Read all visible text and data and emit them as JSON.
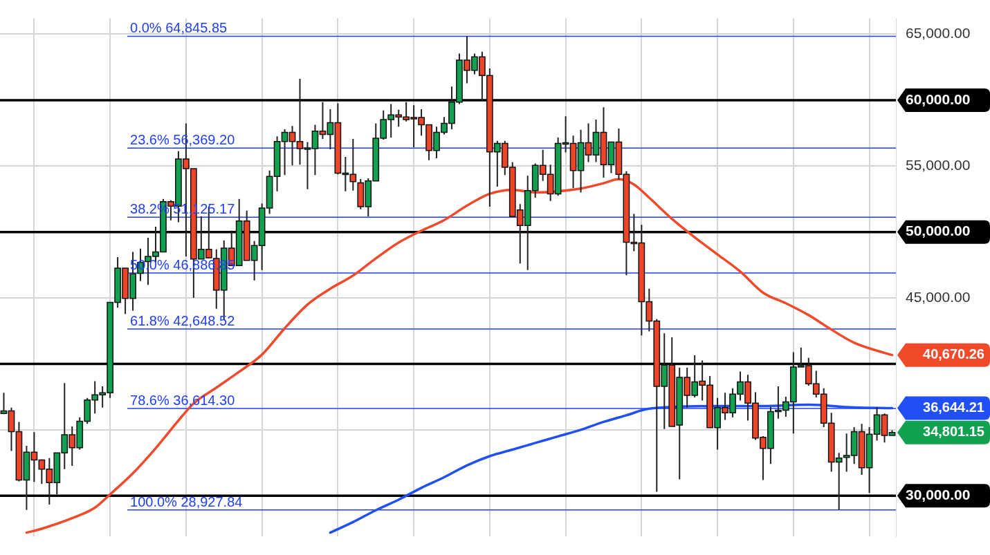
{
  "chart_data": {
    "type": "candlestick",
    "categories": [
      null,
      null,
      null,
      null,
      null,
      null,
      null,
      null,
      null,
      null,
      null,
      null,
      null,
      null,
      null,
      null,
      null,
      null,
      null,
      null,
      null,
      null,
      null,
      null,
      null,
      null,
      null,
      null,
      null,
      null,
      null,
      null,
      null,
      null,
      null,
      null,
      null,
      null,
      null,
      null,
      null,
      null,
      null,
      null,
      null,
      null,
      null,
      null,
      null,
      null,
      null,
      null,
      null,
      null,
      null,
      null,
      null,
      null,
      null,
      null,
      null,
      null,
      null,
      null,
      null,
      null,
      null,
      null,
      null,
      null,
      null,
      null,
      null,
      null,
      null,
      null,
      null,
      null,
      null,
      null,
      null,
      null,
      null,
      null,
      null,
      null,
      null,
      null,
      null,
      null,
      null,
      null,
      null,
      null,
      null,
      null,
      null,
      null,
      null,
      null,
      null,
      null,
      null,
      null,
      null,
      null,
      null,
      null,
      null,
      null,
      null,
      null,
      null,
      null,
      null,
      null,
      null,
      null
    ],
    "ohlc": [
      [
        36237,
        37805,
        36188,
        36433
      ],
      [
        36433,
        36678,
        33395,
        34865
      ],
      [
        34865,
        35600,
        31092,
        31190
      ],
      [
        31190,
        33787,
        28930,
        33297
      ],
      [
        33297,
        34816,
        31043,
        32709
      ],
      [
        32709,
        32758,
        30896,
        32023
      ],
      [
        32023,
        32856,
        29328,
        30994
      ],
      [
        30994,
        33248,
        30112,
        33248
      ],
      [
        33248,
        38540,
        32023,
        34620
      ],
      [
        34620,
        35257,
        32268,
        33640
      ],
      [
        33640,
        35943,
        33493,
        35649
      ],
      [
        35649,
        37413,
        35453,
        37266
      ],
      [
        37266,
        38687,
        36237,
        37658
      ],
      [
        37658,
        38295,
        36678,
        37805
      ],
      [
        37805,
        44665,
        37413,
        44665
      ],
      [
        44665,
        48095,
        44273,
        47262
      ],
      [
        47262,
        47262,
        43783,
        44959
      ],
      [
        44959,
        48487,
        44028,
        46821
      ],
      [
        46870,
        48732,
        46282,
        47703
      ],
      [
        47752,
        49565,
        45988,
        48144
      ],
      [
        48144,
        50398,
        47703,
        48487
      ],
      [
        48487,
        52505,
        48487,
        52309
      ],
      [
        52309,
        52407,
        50888,
        51966
      ],
      [
        51966,
        56131,
        50741,
        55543
      ],
      [
        55543,
        58238,
        48144,
        54808
      ],
      [
        54808,
        54808,
        45008,
        47948
      ],
      [
        47948,
        51182,
        47948,
        48683
      ],
      [
        48683,
        51917,
        47997,
        48046
      ],
      [
        47997,
        48683,
        44175,
        45596
      ],
      [
        45596,
        49369,
        43342,
        48781
      ],
      [
        48781,
        50104,
        47458,
        47458
      ],
      [
        47458,
        52505,
        47458,
        50839
      ],
      [
        50839,
        51623,
        47850,
        47850
      ],
      [
        47850,
        49320,
        46331,
        48977
      ],
      [
        48977,
        52162,
        47115,
        51819
      ],
      [
        51819,
        54661,
        51378,
        54220
      ],
      [
        54220,
        57258,
        53093,
        56866
      ],
      [
        56866,
        57797,
        54318,
        57552
      ],
      [
        57552,
        58042,
        55053,
        56866
      ],
      [
        56866,
        61619,
        55102,
        56327
      ],
      [
        56327,
        56817,
        53240,
        56376
      ],
      [
        56327,
        58140,
        54318,
        57650
      ],
      [
        57650,
        59855,
        57062,
        57405
      ],
      [
        57405,
        59316,
        56278,
        58287
      ],
      [
        58287,
        59757,
        54367,
        54465
      ],
      [
        54416,
        55690,
        53093,
        54465
      ],
      [
        54367,
        57062,
        53142,
        53828
      ],
      [
        53730,
        54024,
        51721,
        51917
      ],
      [
        51917,
        54073,
        51182,
        53877
      ],
      [
        53877,
        58238,
        53877,
        57111
      ],
      [
        57111,
        59218,
        57013,
        58532
      ],
      [
        58532,
        59708,
        57160,
        58875
      ],
      [
        58875,
        59267,
        57993,
        58728
      ],
      [
        58728,
        59855,
        58385,
        58532
      ],
      [
        58679,
        59610,
        56425,
        58581
      ],
      [
        58679,
        59316,
        57307,
        58140
      ],
      [
        58140,
        58140,
        55445,
        56180
      ],
      [
        56180,
        57993,
        55592,
        57552
      ],
      [
        57552,
        58728,
        57405,
        58238
      ],
      [
        58238,
        61031,
        57797,
        59855
      ],
      [
        59855,
        63530,
        59708,
        63040
      ],
      [
        63040,
        64845.85,
        61276,
        62256
      ],
      [
        62256,
        63530,
        61962,
        63285
      ],
      [
        63285,
        63677,
        59953,
        61864
      ],
      [
        61864,
        62403,
        51917,
        56082
      ],
      [
        56082,
        56915,
        53436,
        56719
      ],
      [
        56719,
        56915,
        54318,
        54906
      ],
      [
        54906,
        55298,
        51182,
        51182
      ],
      [
        51672,
        52113,
        47605,
        50496
      ],
      [
        50496,
        54269,
        47115,
        53142
      ],
      [
        53142,
        55200,
        52603,
        55053
      ],
      [
        55053,
        56229,
        53877,
        54367
      ],
      [
        54367,
        55102,
        52358,
        52897
      ],
      [
        52897,
        57160,
        52750,
        56719
      ],
      [
        56719,
        58777,
        56033,
        56768
      ],
      [
        56719,
        57307,
        53338,
        54661
      ],
      [
        54661,
        57748,
        52995,
        56768
      ],
      [
        56768,
        58238,
        55298,
        55837
      ],
      [
        55837,
        58532,
        55298,
        57552
      ],
      [
        57552,
        59463,
        54122,
        55102
      ],
      [
        55102,
        56817,
        54465,
        56817
      ],
      [
        56817,
        57846,
        53975,
        54367
      ],
      [
        54367,
        54612,
        46723,
        49222
      ],
      [
        49222,
        51378,
        48536,
        49173
      ],
      [
        49173,
        50545,
        42166,
        44714
      ],
      [
        44714,
        45694,
        42460,
        43244
      ],
      [
        43244,
        43391,
        30308,
        38295
      ],
      [
        38295,
        42313,
        35061,
        39912
      ],
      [
        39912,
        42019,
        35257,
        35257
      ],
      [
        35355,
        39716,
        31239,
        38981
      ],
      [
        38981,
        39716,
        36678,
        37609
      ],
      [
        37609,
        40647,
        37462,
        38638
      ],
      [
        38687,
        40255,
        37217,
        38393
      ],
      [
        38393,
        39079,
        35159,
        35159
      ],
      [
        35159,
        37413,
        33493,
        36678
      ],
      [
        36678,
        37805,
        35747,
        36286
      ],
      [
        36286,
        38148,
        35943,
        37707
      ],
      [
        37707,
        39422,
        37217,
        38638
      ],
      [
        38638,
        39177,
        35698,
        37021
      ],
      [
        37021,
        37854,
        34228,
        34375
      ],
      [
        34424,
        34522,
        31190,
        33591
      ],
      [
        33591,
        36727,
        32415,
        36384
      ],
      [
        36433,
        38295,
        35845,
        36482
      ],
      [
        36482,
        37511,
        35992,
        37119
      ],
      [
        37119,
        40892,
        34718,
        39765
      ],
      [
        39765,
        41235,
        39765,
        39863
      ],
      [
        39863,
        40451,
        38344,
        38491
      ],
      [
        38491,
        39471,
        37462,
        37707
      ],
      [
        37707,
        38148,
        35208,
        35502
      ],
      [
        35502,
        36286,
        31827,
        32562
      ],
      [
        32562,
        33248,
        28927.84,
        32856
      ],
      [
        32905,
        34718,
        31827,
        33052
      ],
      [
        33052,
        35208,
        32415,
        34865
      ],
      [
        34865,
        35453,
        31582,
        32121
      ],
      [
        32121,
        35208,
        30210,
        34669
      ],
      [
        34669,
        36727,
        34179,
        36139
      ],
      [
        36139,
        36237,
        34032,
        34571
      ],
      [
        34571,
        34963,
        34571,
        34801.15
      ]
    ],
    "colors": [
      "#12a150",
      "#ee4528",
      "#ee4528",
      "#12a150",
      "#ee4528",
      "#ee4528",
      "#ee4528",
      "#12a150",
      "#12a150",
      "#ee4528",
      "#12a150",
      "#12a150",
      "#12a150",
      "#12a150",
      "#12a150",
      "#12a150",
      "#ee4528",
      "#12a150",
      "#12a150",
      "#12a150",
      "#12a150",
      "#12a150",
      "#ee4528",
      "#12a150",
      "#ee4528",
      "#ee4528",
      "#12a150",
      "#ee4528",
      "#ee4528",
      "#12a150",
      "#ee4528",
      "#12a150",
      "#ee4528",
      "#12a150",
      "#12a150",
      "#12a150",
      "#12a150",
      "#12a150",
      "#ee4528",
      "#ee4528",
      "#12a150",
      "#12a150",
      "#ee4528",
      "#12a150",
      "#ee4528",
      "#12a150",
      "#ee4528",
      "#ee4528",
      "#12a150",
      "#12a150",
      "#12a150",
      "#12a150",
      "#ee4528",
      "#ee4528",
      "#ee4528",
      "#ee4528",
      "#ee4528",
      "#12a150",
      "#12a150",
      "#12a150",
      "#12a150",
      "#ee4528",
      "#12a150",
      "#ee4528",
      "#ee4528",
      "#12a150",
      "#ee4528",
      "#ee4528",
      "#ee4528",
      "#12a150",
      "#12a150",
      "#ee4528",
      "#ee4528",
      "#12a150",
      "#12a150",
      "#ee4528",
      "#12a150",
      "#ee4528",
      "#12a150",
      "#ee4528",
      "#12a150",
      "#ee4528",
      "#ee4528",
      "#ee4528",
      "#ee4528",
      "#ee4528",
      "#ee4528",
      "#12a150",
      "#ee4528",
      "#12a150",
      "#ee4528",
      "#12a150",
      "#ee4528",
      "#ee4528",
      "#12a150",
      "#ee4528",
      "#12a150",
      "#12a150",
      "#ee4528",
      "#ee4528",
      "#ee4528",
      "#12a150",
      "#12a150",
      "#12a150",
      "#12a150",
      "#12a150",
      "#ee4528",
      "#ee4528",
      "#ee4528",
      "#ee4528",
      "#12a150",
      "#12a150",
      "#12a150",
      "#ee4528",
      "#12a150",
      "#12a150",
      "#ee4528",
      "#12a150"
    ],
    "series": [
      {
        "type": "line",
        "color": "#f04a2a",
        "values": [
          null,
          null,
          null,
          27200,
          null,
          27500,
          null,
          null,
          null,
          28300,
          null,
          null,
          29100,
          null,
          30100,
          null,
          null,
          31700,
          null,
          null,
          33600,
          null,
          null,
          35700,
          null,
          37000,
          null,
          null,
          38200,
          null,
          null,
          39400,
          null,
          null,
          40700,
          null,
          null,
          42700,
          null,
          null,
          44500,
          null,
          null,
          45700,
          null,
          null,
          46700,
          null,
          null,
          48000,
          null,
          null,
          49200,
          null,
          null,
          50100,
          null,
          null,
          50900,
          null,
          null,
          52000,
          null,
          null,
          52900,
          null,
          null,
          53200,
          null,
          null,
          53000,
          null,
          null,
          null,
          null,
          null,
          53300,
          null,
          null,
          53700,
          null,
          54000,
          null,
          53600,
          null,
          52600,
          null,
          null,
          51000,
          null,
          null,
          49600,
          null,
          null,
          48300,
          null,
          null,
          47000,
          null,
          null,
          45400,
          null,
          null,
          44600,
          null,
          null,
          43700,
          null,
          null,
          42600,
          null,
          null,
          41600,
          null,
          null,
          41000,
          null,
          40670.26
        ]
      },
      {
        "type": "line",
        "color": "#1f4ff5",
        "values": [
          null,
          null,
          null,
          null,
          null,
          null,
          null,
          null,
          null,
          null,
          null,
          null,
          null,
          null,
          null,
          null,
          null,
          null,
          null,
          null,
          null,
          null,
          null,
          null,
          null,
          null,
          null,
          null,
          null,
          null,
          null,
          null,
          null,
          null,
          null,
          null,
          null,
          null,
          null,
          null,
          null,
          null,
          null,
          27200,
          null,
          null,
          28000,
          null,
          null,
          28900,
          null,
          null,
          29700,
          null,
          null,
          30600,
          null,
          null,
          31400,
          null,
          null,
          32300,
          null,
          null,
          33000,
          null,
          null,
          33500,
          null,
          null,
          34000,
          null,
          null,
          34500,
          null,
          null,
          35000,
          null,
          null,
          35600,
          null,
          null,
          36100,
          null,
          null,
          36600,
          null,
          null,
          null,
          null,
          null,
          null,
          null,
          null,
          36800,
          null,
          null,
          null,
          null,
          null,
          36800,
          null,
          null,
          null,
          null,
          null,
          36900,
          null,
          null,
          null,
          null,
          null,
          36700,
          null,
          null,
          null,
          null,
          36644.21
        ]
      }
    ],
    "ylim": [
      26900,
      66200
    ],
    "yticks": [
      {
        "value": 65000,
        "label": "65,000.00"
      },
      {
        "value": 60000,
        "label": "60,000.00"
      },
      {
        "value": 55000,
        "label": "55,000.00"
      },
      {
        "value": 50000,
        "label": "50,000.00"
      },
      {
        "value": 45000,
        "label": "45,000.00"
      },
      {
        "value": 40000,
        "label": null
      },
      {
        "value": 35000,
        "label": null
      },
      {
        "value": 30000,
        "label": "30,000.00"
      }
    ],
    "ref_lines": [
      {
        "axis": "y",
        "value": 60000,
        "label": null,
        "color": "#000000"
      },
      {
        "axis": "y",
        "value": 50000,
        "label": null,
        "color": "#000000"
      },
      {
        "axis": "y",
        "value": 40000,
        "label": null,
        "color": "#000000"
      },
      {
        "axis": "y",
        "value": 30000,
        "label": null,
        "color": "#000000"
      },
      {
        "axis": "y",
        "value": 64845.85,
        "label": "0.0% 64,845.85",
        "color": "#1f3fff"
      },
      {
        "axis": "y",
        "value": 56369.2,
        "label": "23.6% 56,369.20",
        "color": "#1f3fff"
      },
      {
        "axis": "y",
        "value": 51125.17,
        "label": "38.2% 51,125.17",
        "color": "#1f3fff"
      },
      {
        "axis": "y",
        "value": 46886.85,
        "label": "50.0% 46,886.85",
        "color": "#1f3fff"
      },
      {
        "axis": "y",
        "value": 42648.52,
        "label": "61.8% 42,648.52",
        "color": "#1f3fff"
      },
      {
        "axis": "y",
        "value": 36614.3,
        "label": "78.6% 36,614.30",
        "color": "#1f3fff"
      },
      {
        "axis": "y",
        "value": 28927.84,
        "label": "100.0% 28,927.84",
        "color": "#1f3fff"
      }
    ],
    "annotations": [
      "40,670.26",
      "36,644.21",
      "34,801.15"
    ],
    "grid": true,
    "legend": false,
    "tick_labels": "y"
  }
}
